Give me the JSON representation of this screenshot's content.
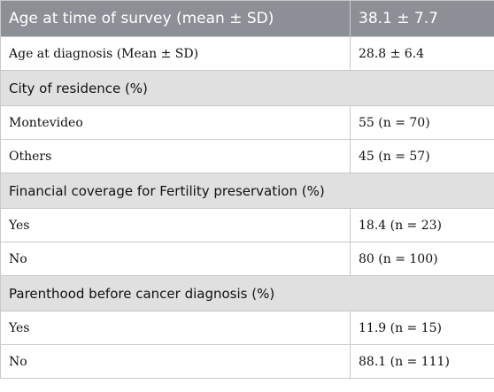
{
  "table": {
    "header": {
      "label": "Age at time of survey (mean ± SD)",
      "value": "38.1 ± 7.7"
    },
    "rows": [
      {
        "type": "data",
        "label": "Age at diagnosis (Mean ± SD)",
        "value": "28.8 ± 6.4"
      },
      {
        "type": "section",
        "label": "City of residence (%)"
      },
      {
        "type": "data",
        "label": "Montevideo",
        "value": "55 (n = 70)"
      },
      {
        "type": "data",
        "label": "Others",
        "value": "45 (n = 57)"
      },
      {
        "type": "section",
        "label": "Financial coverage for Fertility preservation (%)"
      },
      {
        "type": "data",
        "label": "Yes",
        "value": "18.4 (n = 23)"
      },
      {
        "type": "data",
        "label": "No",
        "value": "80 (n = 100)"
      },
      {
        "type": "section",
        "label": "Parenthood before cancer diagnosis (%)"
      },
      {
        "type": "data",
        "label": "Yes",
        "value": "11.9 (n = 15)"
      },
      {
        "type": "data",
        "label": "No",
        "value": "88.1 (n = 111)"
      }
    ]
  }
}
